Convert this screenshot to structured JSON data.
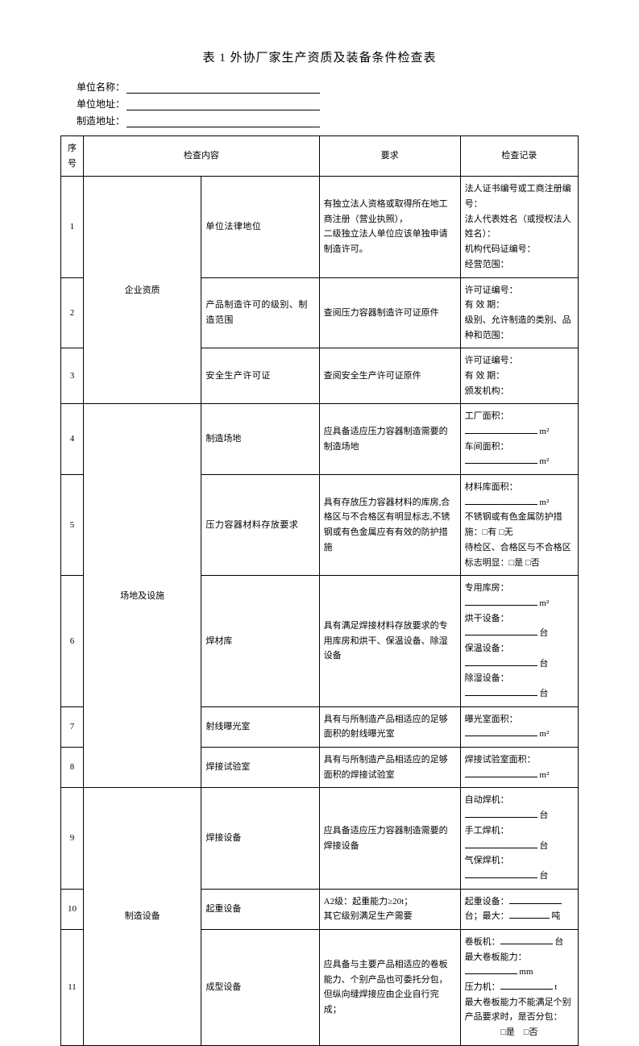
{
  "title": "表 1 外协厂家生产资质及装备条件检查表",
  "header": {
    "unitNameLabel": "单位名称：",
    "unitAddrLabel": "单位地址：",
    "mfgAddrLabel": "制造地址："
  },
  "cols": {
    "seq": "序号",
    "content": "检查内容",
    "req": "要求",
    "rec": "检查记录"
  },
  "cat1": "企业资质",
  "cat2": "场地及设施",
  "cat3": "制造设备",
  "rows": [
    {
      "seq": "1",
      "item": "单位法律地位",
      "req": "有独立法人资格或取得所在地工商注册（营业执照），\n二级独立法人单位应该单独申请制造许可。",
      "rec": "法人证书编号或工商注册编号：\n法人代表姓名（或授权法人姓名）：\n机构代码证编号：\n经营范围："
    },
    {
      "seq": "2",
      "item": "产品制造许可的级别、制造范围",
      "req": "查阅压力容器制造许可证原件",
      "rec": "许可证编号：\n有 效 期：\n级别、允许制造的类别、品种和范围："
    },
    {
      "seq": "3",
      "item": "安全生产许可证",
      "req": "查阅安全生产许可证原件",
      "rec": "许可证编号：\n有 效 期：\n颁发机构："
    },
    {
      "seq": "4",
      "item": "制造场地",
      "req": "应具备适应压力容器制造需要的制造场地",
      "recLines": [
        {
          "label": "工厂面积：",
          "unit": "m²"
        },
        {
          "label": "车间面积：",
          "unit": "m²"
        }
      ]
    },
    {
      "seq": "5",
      "item": "压力容器材料存放要求",
      "req": "具有存放压力容器材料的库房,合格区与不合格区有明显标志,不锈钢或有色金属应有有效的防护措施",
      "recCustom": "storage"
    },
    {
      "seq": "6",
      "item": "焊材库",
      "req": "具有满足焊接材料存放要求的专用库房和烘干、保温设备、除湿设备",
      "recLines": [
        {
          "label": "专用库房：",
          "unit": "m²"
        },
        {
          "label": "烘干设备：",
          "unit": "台"
        },
        {
          "label": "保温设备：",
          "unit": "台"
        },
        {
          "label": "除湿设备：",
          "unit": "台"
        }
      ]
    },
    {
      "seq": "7",
      "item": "射线曝光室",
      "req": "具有与所制造产品相适应的足够面积的射线曝光室",
      "recLines": [
        {
          "label": "曝光室面积：",
          "unit": "m²"
        }
      ]
    },
    {
      "seq": "8",
      "item": "焊接试验室",
      "req": "具有与所制造产品相适应的足够面积的焊接试验室",
      "recLines": [
        {
          "label": "焊接试验室面积：",
          "unit": "m²"
        }
      ]
    },
    {
      "seq": "9",
      "item": "焊接设备",
      "req": "应具备适应压力容器制造需要的焊接设备",
      "recLines": [
        {
          "label": "自动焊机：",
          "unit": "台"
        },
        {
          "label": "手工焊机：",
          "unit": "台"
        },
        {
          "label": "气保焊机：",
          "unit": "台"
        }
      ]
    },
    {
      "seq": "10",
      "item": "起重设备",
      "req": "A2级：起重能力≥20t；\n其它级别满足生产需要",
      "recCustom": "crane"
    },
    {
      "seq": "11",
      "item": "成型设备",
      "req": "应具备与主要产品相适应的卷板能力、个别产品也可委托分包，但纵向缝焊接应由企业自行完成；",
      "recCustom": "forming"
    }
  ],
  "misc": {
    "storageL1": "材料库面积：",
    "storageU1": "m²",
    "storageL2": "不锈钢或有色金属防护措施：□有 □无",
    "storageL3": "待检区、合格区与不合格区标志明显：□是 □否",
    "craneL1": "起重设备：",
    "craneU1": "台；最大：",
    "craneU2": "吨",
    "formingL1": "卷板机：",
    "formingU1": "台",
    "formingL2": "最大卷板能力：",
    "formingU2": "mm",
    "formingL3": "压力机：",
    "formingU3": "t",
    "formingL4": "最大卷板能力不能满足个别产品要求时，是否分包：",
    "formingL5": "□是　□否"
  }
}
